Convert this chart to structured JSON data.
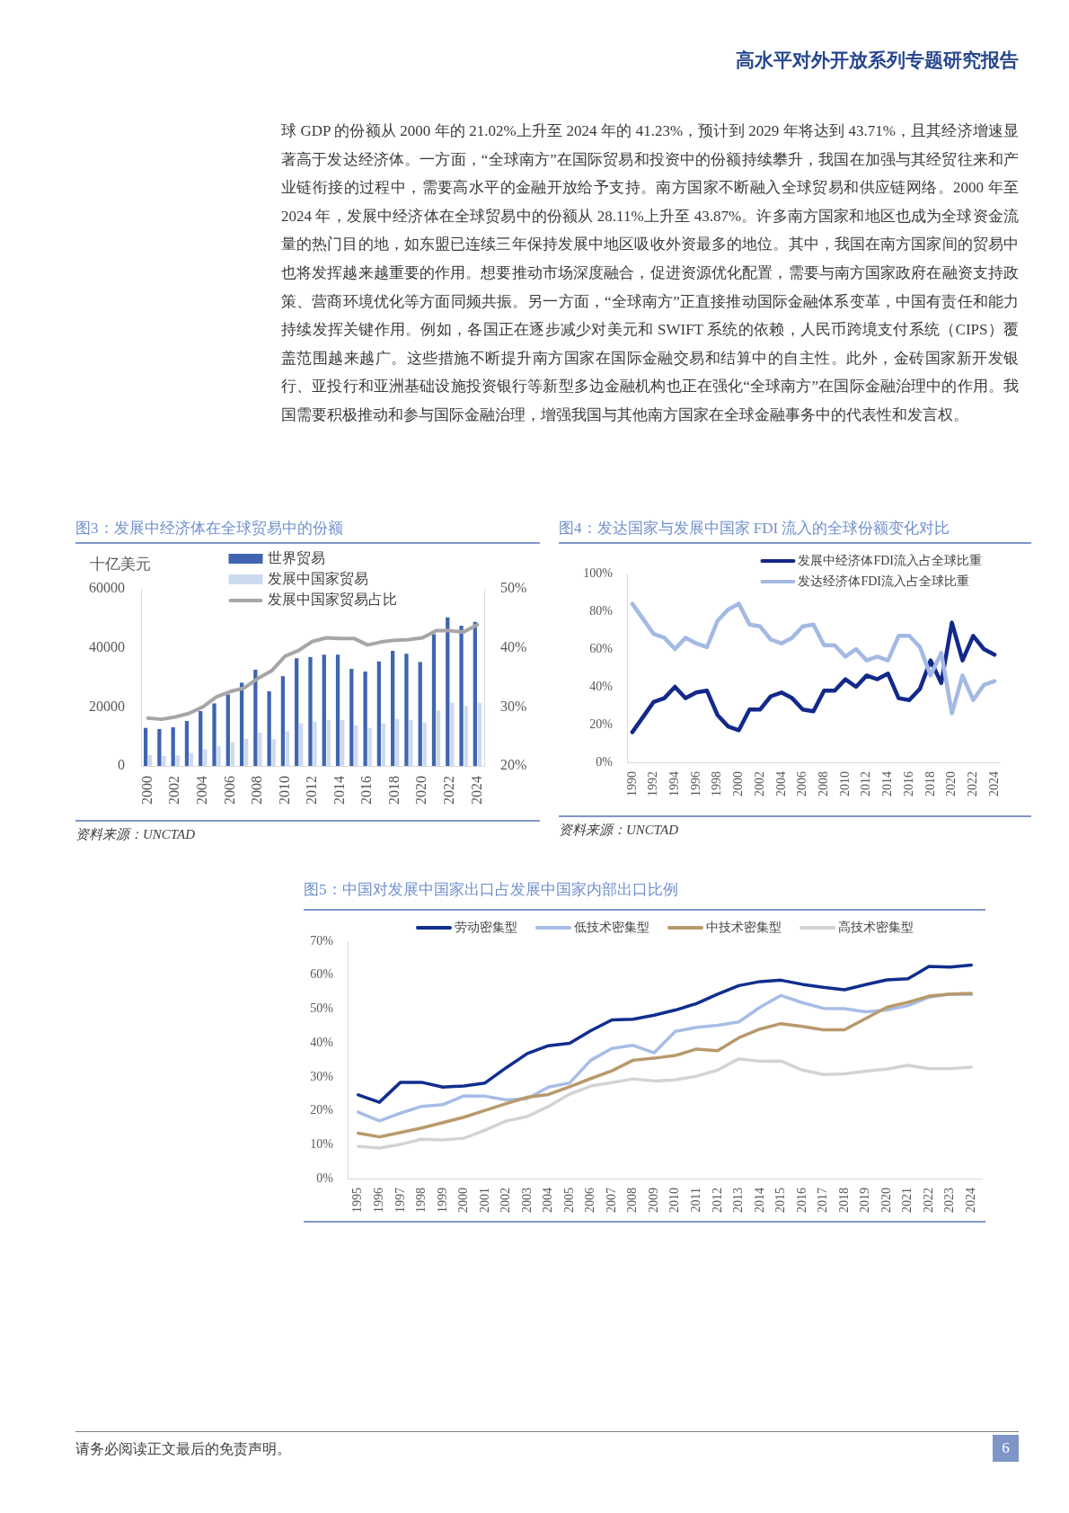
{
  "chart_data": [
    {
      "type": "other",
      "title": "高水平对外开放系列专题研究报告",
      "annotations": [
        "球 GDP 的份额从 2000 年的 21.02%上升至 2024 年的 41.23%，预计到 2029 年将达到 43.71%，且其经济增速显著高于发达经济体。一方面，“全球南方”在国际贸易和投资中的份额持续攀升，我国在加强与其经贸往来和产业链衔接的过程中，需要高水平的金融开放给予支持。南方国家不断融入全球贸易和供应链网络。2000 年至 2024 年，发展中经济体在全球贸易中的份额从 28.11%上升至 43.87%。许多南方国家和地区也成为全球资金流量的热门目的地，如东盟已连续三年保持发展中地区吸收外资最多的地位。其中，我国在南方国家间的贸易中也将发挥越来越重要的作用。想要推动市场深度融合，促进资源优化配置，需要与南方国家政府在融资支持政策、营商环境优化等方面同频共振。另一方面，“全球南方”正直接推动国际金融体系变革，中国有责任和能力持续发挥关键作用。例如，各国正在逐步减少对美元和 SWIFT 系统的依赖，人民币跨境支付系统（CIPS）覆盖范围越来越广。这些措施不断提升南方国家在国际金融交易和结算中的自主性。此外，金砖国家新开发银行、亚投行和亚洲基础设施投资银行等新型多边金融机构也正在强化“全球南方”在国际金融治理中的作用。我国需要积极推动和参与国际金融治理，增强我国与其他南方国家在全球金融事务中的代表性和发言权。"
      ]
    },
    {
      "type": "bar",
      "title": "图3：发展中经济体在全球贸易中的份额",
      "ylabel": "十亿美元",
      "categories": [
        "2000",
        null,
        "2002",
        null,
        "2004",
        null,
        "2006",
        null,
        "2008",
        null,
        "2010",
        null,
        "2012",
        null,
        "2014",
        null,
        "2016",
        null,
        "2018",
        null,
        "2020",
        null,
        "2022",
        null,
        "2024"
      ],
      "series": [
        {
          "name": "世界贸易",
          "color": "#3f65b1",
          "values": [
            12900,
            12500,
            13100,
            15200,
            18600,
            21200,
            24200,
            28200,
            32600,
            25300,
            30400,
            36500,
            36900,
            37700,
            37700,
            32900,
            32000,
            35400,
            39000,
            38000,
            35200,
            44600,
            50300,
            47500,
            48800
          ]
        },
        {
          "name": "发展中国家贸易",
          "color": "#ccdaf0",
          "values": [
            3700,
            3400,
            3600,
            4400,
            5600,
            6700,
            8000,
            9200,
            11300,
            9100,
            11700,
            14400,
            15000,
            15600,
            15600,
            13700,
            12900,
            14400,
            15900,
            15600,
            14700,
            18900,
            21400,
            20300,
            21400
          ]
        },
        {
          "name": "发展中国家贸易占比",
          "type": "line",
          "axis": "y2",
          "color": "#a6a6a6",
          "values": [
            28.1,
            27.9,
            28.3,
            28.9,
            30.0,
            31.7,
            32.6,
            33.2,
            34.8,
            36.1,
            38.6,
            39.6,
            41.1,
            41.7,
            41.6,
            41.6,
            40.5,
            41.0,
            41.3,
            41.4,
            41.7,
            42.9,
            42.9,
            42.7,
            43.9
          ]
        }
      ],
      "ylim": [
        0,
        60000
      ],
      "yticks": [
        0,
        20000,
        40000,
        60000
      ],
      "y2lim": [
        20,
        50
      ],
      "y2ticks": [
        {
          "value": 20,
          "label": "20%"
        },
        {
          "value": 30,
          "label": "30%"
        },
        {
          "value": 40,
          "label": "40%"
        },
        {
          "value": 50,
          "label": "50%"
        }
      ],
      "legend": "top",
      "annotations": [
        "资料来源：UNCTAD"
      ]
    },
    {
      "type": "line",
      "title": "图4：发达国家与发展中国家 FDI 流入的全球份额变化对比",
      "categories": [
        "1990",
        null,
        "1992",
        null,
        "1994",
        null,
        "1996",
        null,
        "1998",
        null,
        "2000",
        null,
        "2002",
        null,
        "2004",
        null,
        "2006",
        null,
        "2008",
        null,
        "2010",
        null,
        "2012",
        null,
        "2014",
        null,
        "2016",
        null,
        "2018",
        null,
        "2020",
        null,
        "2022",
        null,
        "2024"
      ],
      "series": [
        {
          "name": "发展中经济体FDI流入占全球比重",
          "color": "#13298a",
          "values": [
            16,
            24,
            32,
            34,
            40,
            34,
            37,
            38,
            25,
            19,
            17,
            28,
            28,
            35,
            37,
            34,
            28,
            27,
            38,
            38,
            44,
            40,
            46,
            44,
            47,
            34,
            33,
            39,
            54,
            42,
            74,
            54,
            67,
            60,
            57
          ]
        },
        {
          "name": "发达经济体FDI流入占全球比重",
          "color": "#a4b9e3",
          "values": [
            84,
            76,
            68,
            66,
            60,
            66,
            63,
            61,
            75,
            81,
            84,
            73,
            72,
            65,
            63,
            66,
            72,
            73,
            62,
            62,
            56,
            60,
            54,
            56,
            54,
            67,
            67,
            61,
            46,
            58,
            26,
            46,
            33,
            41,
            43
          ]
        }
      ],
      "ylim": [
        0,
        100
      ],
      "yticks": [
        {
          "value": 0,
          "label": "0%"
        },
        {
          "value": 20,
          "label": "20%"
        },
        {
          "value": 40,
          "label": "40%"
        },
        {
          "value": 60,
          "label": "60%"
        },
        {
          "value": 80,
          "label": "80%"
        },
        {
          "value": 100,
          "label": "100%"
        }
      ],
      "legend": "top right",
      "annotations": [
        "资料来源：UNCTAD"
      ]
    },
    {
      "type": "line",
      "title": "图5：中国对发展中国家出口占发展中国家内部出口比例",
      "categories": [
        "1995",
        "1996",
        "1997",
        "1998",
        "1999",
        "2000",
        "2001",
        "2002",
        "2003",
        "2004",
        "2005",
        "2006",
        "2007",
        "2008",
        "2009",
        "2010",
        "2011",
        "2012",
        "2013",
        "2014",
        "2015",
        "2016",
        "2017",
        "2018",
        "2019",
        "2020",
        "2021",
        "2022",
        "2023",
        "2024"
      ],
      "series": [
        {
          "name": "劳动密集型",
          "color": "#0f2e8e",
          "values": [
            24.7,
            22.5,
            28.4,
            28.4,
            27.0,
            27.3,
            28.2,
            32.7,
            36.9,
            39.2,
            39.9,
            43.6,
            46.8,
            47.0,
            48.2,
            49.7,
            51.6,
            54.4,
            56.9,
            58.1,
            58.5,
            57.3,
            56.4,
            55.7,
            57.2,
            58.6,
            58.9,
            62.6,
            62.4,
            63.0
          ]
        },
        {
          "name": "低技术密集型",
          "color": "#a7bce6",
          "values": [
            19.6,
            17.0,
            19.3,
            21.3,
            21.8,
            24.4,
            24.3,
            23.2,
            23.6,
            27.0,
            28.2,
            34.9,
            38.4,
            39.3,
            37.1,
            43.4,
            44.6,
            45.2,
            46.2,
            50.5,
            54.0,
            51.9,
            50.2,
            50.1,
            49.2,
            49.7,
            51.0,
            53.5,
            54.4,
            54.3
          ]
        },
        {
          "name": "中技术密集型",
          "color": "#b8996b",
          "values": [
            13.4,
            12.3,
            13.6,
            14.9,
            16.5,
            18.1,
            20.1,
            22.1,
            24.0,
            24.8,
            27.1,
            29.5,
            31.8,
            34.9,
            35.5,
            36.3,
            38.2,
            37.7,
            41.5,
            44.1,
            45.7,
            44.9,
            43.9,
            43.9,
            47.2,
            50.5,
            52.0,
            53.8,
            54.4,
            54.6
          ]
        },
        {
          "name": "高技术密集型",
          "color": "#d3d3d3",
          "values": [
            9.5,
            9.0,
            10.1,
            11.6,
            11.4,
            11.9,
            14.3,
            17.0,
            18.3,
            21.3,
            24.9,
            27.3,
            28.3,
            29.4,
            28.8,
            29.1,
            30.2,
            32.0,
            35.3,
            34.6,
            34.7,
            32.0,
            30.7,
            30.9,
            31.7,
            32.3,
            33.4,
            32.4,
            32.4,
            32.9
          ]
        }
      ],
      "ylim": [
        0,
        70
      ],
      "yticks": [
        {
          "value": 0,
          "label": "0%"
        },
        {
          "value": 10,
          "label": "10%"
        },
        {
          "value": 20,
          "label": "20%"
        },
        {
          "value": 30,
          "label": "30%"
        },
        {
          "value": 40,
          "label": "40%"
        },
        {
          "value": 50,
          "label": "50%"
        },
        {
          "value": 60,
          "label": "60%"
        },
        {
          "value": 70,
          "label": "70%"
        }
      ],
      "legend": "top"
    },
    {
      "type": "other",
      "annotations": [
        "请务必阅读正文最后的免责声明。",
        "6"
      ]
    }
  ]
}
